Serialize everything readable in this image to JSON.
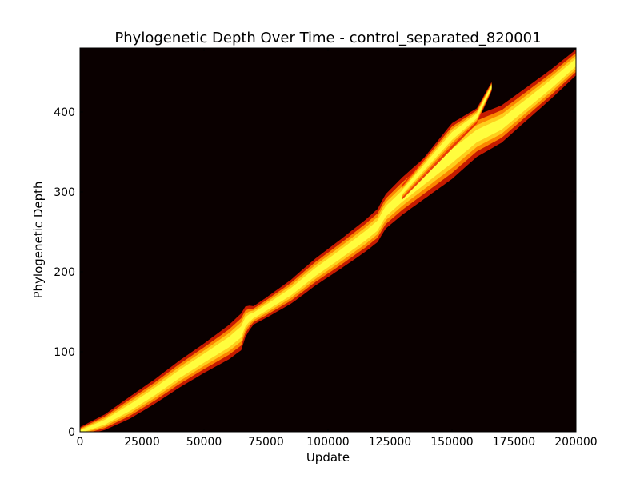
{
  "chart_data": {
    "type": "heatmap",
    "title": "Phylogenetic Depth Over Time - control_separated_820001",
    "xlabel": "Update",
    "ylabel": "Phylogenetic Depth",
    "xlim": [
      0,
      200000
    ],
    "ylim": [
      0,
      480
    ],
    "xticks": [
      0,
      25000,
      50000,
      75000,
      100000,
      125000,
      150000,
      175000,
      200000
    ],
    "yticks": [
      0,
      100,
      200,
      300,
      400
    ],
    "grid": false,
    "colormap": "hot",
    "background_color": "#0a0000",
    "colors": [
      "#ffff40",
      "#ffd21e",
      "#ff8c00",
      "#e61e00"
    ],
    "bands": [
      {
        "name": "",
        "ridge": [
          [
            0,
            0
          ],
          [
            10000,
            12
          ],
          [
            20000,
            30
          ],
          [
            30000,
            50
          ],
          [
            40000,
            72
          ],
          [
            50000,
            92
          ],
          [
            60000,
            112
          ],
          [
            65000,
            125
          ],
          [
            67000,
            140
          ],
          [
            75000,
            155
          ],
          [
            85000,
            175
          ],
          [
            95000,
            200
          ],
          [
            105000,
            222
          ],
          [
            115000,
            245
          ],
          [
            120000,
            258
          ],
          [
            123000,
            275
          ],
          [
            130000,
            295
          ],
          [
            140000,
            320
          ],
          [
            150000,
            345
          ],
          [
            160000,
            370
          ],
          [
            170000,
            385
          ],
          [
            180000,
            410
          ],
          [
            190000,
            435
          ],
          [
            200000,
            462
          ]
        ],
        "spread": [
          [
            0,
            5
          ],
          [
            20000,
            12
          ],
          [
            50000,
            16
          ],
          [
            65000,
            20
          ],
          [
            70000,
            10
          ],
          [
            90000,
            14
          ],
          [
            120000,
            18
          ],
          [
            150000,
            25
          ],
          [
            180000,
            18
          ],
          [
            200000,
            14
          ]
        ]
      },
      {
        "name": "",
        "ridge": [
          [
            130000,
            300
          ],
          [
            140000,
            335
          ],
          [
            150000,
            370
          ],
          [
            160000,
            395
          ],
          [
            166000,
            432
          ]
        ],
        "spread": [
          [
            130000,
            8
          ],
          [
            150000,
            14
          ],
          [
            166000,
            5
          ]
        ]
      }
    ]
  }
}
